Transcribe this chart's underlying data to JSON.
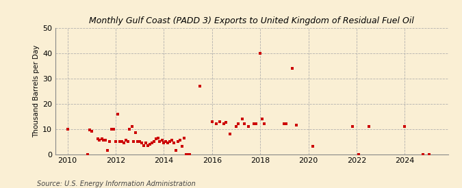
{
  "title": "Monthly Gulf Coast (PADD 3) Exports to United Kingdom of Residual Fuel Oil",
  "ylabel": "Thousand Barrels per Day",
  "source": "Source: U.S. Energy Information Administration",
  "background_color": "#faefd4",
  "dot_color": "#cc0000",
  "ylim": [
    0,
    50
  ],
  "yticks": [
    0,
    10,
    20,
    30,
    40,
    50
  ],
  "xlim_start": 2009.5,
  "xlim_end": 2025.8,
  "xticks": [
    2010,
    2012,
    2014,
    2016,
    2018,
    2020,
    2022,
    2024
  ],
  "data_points": [
    [
      2010.0,
      10.0
    ],
    [
      2010.83,
      0.0
    ],
    [
      2010.92,
      9.5
    ],
    [
      2011.0,
      9.0
    ],
    [
      2011.25,
      6.0
    ],
    [
      2011.33,
      5.5
    ],
    [
      2011.42,
      6.0
    ],
    [
      2011.5,
      5.5
    ],
    [
      2011.58,
      5.5
    ],
    [
      2011.67,
      1.5
    ],
    [
      2011.75,
      5.0
    ],
    [
      2011.83,
      10.0
    ],
    [
      2011.92,
      10.0
    ],
    [
      2012.0,
      5.0
    ],
    [
      2012.08,
      16.0
    ],
    [
      2012.17,
      5.0
    ],
    [
      2012.25,
      5.0
    ],
    [
      2012.33,
      4.5
    ],
    [
      2012.42,
      5.5
    ],
    [
      2012.5,
      5.0
    ],
    [
      2012.58,
      10.0
    ],
    [
      2012.67,
      11.0
    ],
    [
      2012.75,
      5.0
    ],
    [
      2012.83,
      8.5
    ],
    [
      2012.92,
      5.0
    ],
    [
      2013.0,
      5.0
    ],
    [
      2013.08,
      4.5
    ],
    [
      2013.17,
      3.5
    ],
    [
      2013.25,
      4.5
    ],
    [
      2013.33,
      3.5
    ],
    [
      2013.42,
      4.0
    ],
    [
      2013.5,
      4.5
    ],
    [
      2013.58,
      5.0
    ],
    [
      2013.67,
      6.0
    ],
    [
      2013.75,
      6.5
    ],
    [
      2013.83,
      5.0
    ],
    [
      2013.92,
      5.5
    ],
    [
      2014.0,
      4.5
    ],
    [
      2014.08,
      5.0
    ],
    [
      2014.17,
      4.5
    ],
    [
      2014.25,
      5.0
    ],
    [
      2014.33,
      5.5
    ],
    [
      2014.42,
      4.5
    ],
    [
      2014.5,
      1.5
    ],
    [
      2014.58,
      5.0
    ],
    [
      2014.67,
      5.5
    ],
    [
      2014.75,
      3.0
    ],
    [
      2014.83,
      6.5
    ],
    [
      2014.92,
      0.0
    ],
    [
      2015.0,
      0.0
    ],
    [
      2015.08,
      0.0
    ],
    [
      2015.5,
      27.0
    ],
    [
      2016.0,
      13.0
    ],
    [
      2016.17,
      12.0
    ],
    [
      2016.33,
      13.0
    ],
    [
      2016.5,
      12.0
    ],
    [
      2016.58,
      12.5
    ],
    [
      2016.75,
      8.0
    ],
    [
      2017.0,
      11.0
    ],
    [
      2017.08,
      12.0
    ],
    [
      2017.25,
      14.0
    ],
    [
      2017.33,
      12.0
    ],
    [
      2017.5,
      11.0
    ],
    [
      2017.75,
      12.0
    ],
    [
      2017.83,
      12.0
    ],
    [
      2018.0,
      40.0
    ],
    [
      2018.08,
      14.0
    ],
    [
      2018.17,
      12.0
    ],
    [
      2019.0,
      12.0
    ],
    [
      2019.08,
      12.0
    ],
    [
      2019.33,
      34.0
    ],
    [
      2019.5,
      11.5
    ],
    [
      2020.17,
      3.0
    ],
    [
      2021.83,
      11.0
    ],
    [
      2022.08,
      0.0
    ],
    [
      2022.5,
      11.0
    ],
    [
      2024.0,
      11.0
    ],
    [
      2024.75,
      0.0
    ],
    [
      2025.0,
      0.0
    ]
  ]
}
